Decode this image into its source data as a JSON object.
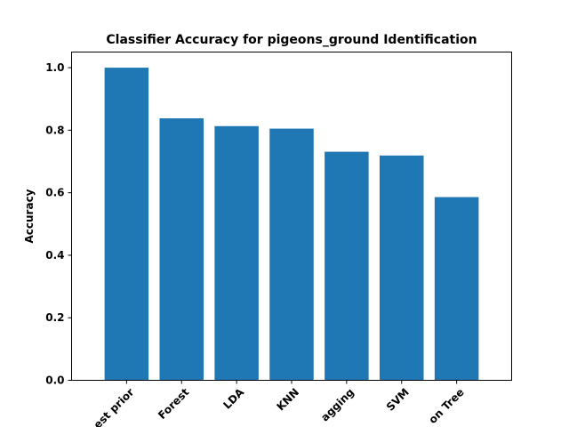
{
  "chart_data": {
    "type": "bar",
    "title": "Classifier Accuracy for pigeons_ground Identification",
    "xlabel": "",
    "ylabel": "Accuracy",
    "ylim": [
      0,
      1.05
    ],
    "yticks": [
      "0.0",
      "0.2",
      "0.4",
      "0.6",
      "0.8",
      "1.0"
    ],
    "categories": [
      "est prior",
      "Forest",
      "LDA",
      "KNN",
      "agging",
      "SVM",
      "on Tree"
    ],
    "values": [
      1.0,
      0.838,
      0.813,
      0.805,
      0.731,
      0.719,
      0.586
    ],
    "bar_color": "#1f77b4",
    "grid": false,
    "legend": "none"
  }
}
